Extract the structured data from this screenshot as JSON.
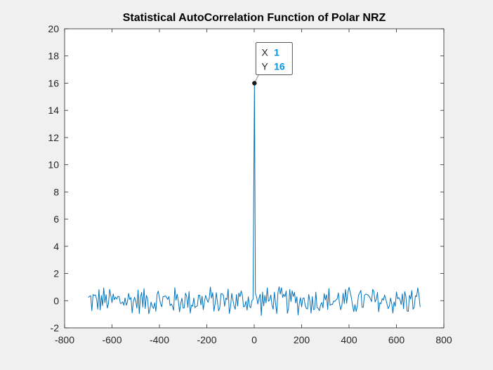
{
  "chart_data": {
    "type": "line",
    "title": "Statistical AutoCorrelation Function of Polar NRZ",
    "xlabel": "",
    "ylabel": "",
    "xlim": [
      -800,
      800
    ],
    "ylim": [
      -2,
      20
    ],
    "xticks": [
      -800,
      -600,
      -400,
      -200,
      0,
      200,
      400,
      600,
      800
    ],
    "yticks": [
      -2,
      0,
      2,
      4,
      6,
      8,
      10,
      12,
      14,
      16,
      18,
      20
    ],
    "grid": false,
    "legend": "none",
    "series": [
      {
        "x_start": -700,
        "x_end": 700,
        "x_step": 5,
        "baseline_mean": 0,
        "baseline_amplitude": 1.2,
        "peak": {
          "x": 1,
          "y": 16
        },
        "color": "#0072bd"
      }
    ],
    "datatip": {
      "x_key": "X",
      "x_value": "1",
      "y_key": "Y",
      "y_value": "16",
      "value_color": "#0096e6",
      "point": {
        "x": 1,
        "y": 16
      }
    }
  },
  "colors": {
    "axes_bg": "#ffffff",
    "axes_border": "#262626",
    "figure_bg": "#f0f0f0"
  }
}
